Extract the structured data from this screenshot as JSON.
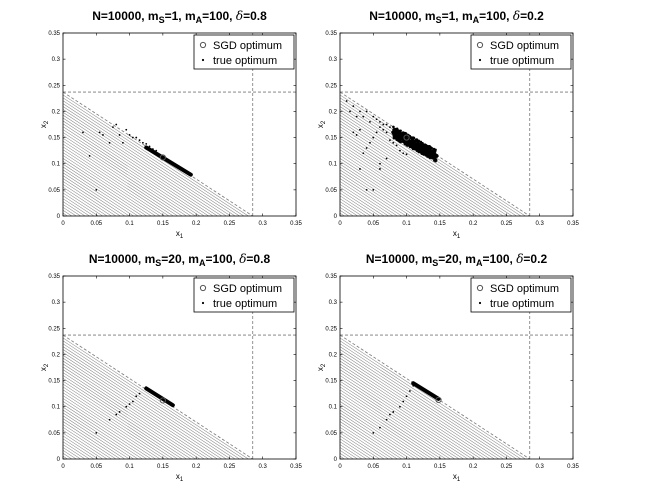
{
  "chart_data": [
    {
      "type": "scatter",
      "title_parts": {
        "n": "10000",
        "ms": "1",
        "ma": "100",
        "delta": "0.8"
      },
      "xlabel": "x",
      "xlabel_sub": "1",
      "ylabel": "x",
      "ylabel_sub": "2",
      "xlim": [
        0,
        0.35
      ],
      "ylim": [
        0,
        0.35
      ],
      "xticks": [
        "0",
        "0.05",
        "0.1",
        "0.15",
        "0.2",
        "0.25",
        "0.3",
        "0.35"
      ],
      "yticks": [
        "0",
        "0.05",
        "0.1",
        "0.15",
        "0.2",
        "0.25",
        "0.3",
        "0.35"
      ],
      "legend": {
        "position": "top-right",
        "entries": [
          "SGD optimum",
          "true optimum"
        ]
      },
      "constraint_line": {
        "x_intercept": 0.285,
        "y_intercept": 0.237
      },
      "dashed_levels": {
        "x": 0.285,
        "y": 0.237
      },
      "true_optimum": {
        "x": 0.15,
        "y": 0.112
      },
      "sgd_path": {
        "from": [
          0.125,
          0.131
        ],
        "to": [
          0.192,
          0.079
        ]
      },
      "sgd_scatter": [
        [
          0.03,
          0.16
        ],
        [
          0.04,
          0.115
        ],
        [
          0.05,
          0.05
        ],
        [
          0.055,
          0.16
        ],
        [
          0.06,
          0.155
        ],
        [
          0.07,
          0.14
        ],
        [
          0.075,
          0.17
        ],
        [
          0.08,
          0.175
        ],
        [
          0.085,
          0.155
        ],
        [
          0.09,
          0.14
        ],
        [
          0.095,
          0.165
        ],
        [
          0.1,
          0.155
        ],
        [
          0.105,
          0.15
        ],
        [
          0.11,
          0.15
        ],
        [
          0.115,
          0.145
        ],
        [
          0.12,
          0.14
        ],
        [
          0.125,
          0.138
        ],
        [
          0.13,
          0.133
        ],
        [
          0.135,
          0.128
        ],
        [
          0.14,
          0.125
        ]
      ]
    },
    {
      "type": "scatter",
      "title_parts": {
        "n": "10000",
        "ms": "1",
        "ma": "100",
        "delta": "0.2"
      },
      "xlabel": "x",
      "xlabel_sub": "1",
      "ylabel": "x",
      "ylabel_sub": "2",
      "xlim": [
        0,
        0.35
      ],
      "ylim": [
        0,
        0.35
      ],
      "xticks": [
        "0",
        "0.05",
        "0.1",
        "0.15",
        "0.2",
        "0.25",
        "0.3",
        "0.35"
      ],
      "yticks": [
        "0",
        "0.05",
        "0.1",
        "0.15",
        "0.2",
        "0.25",
        "0.3",
        "0.35"
      ],
      "legend": {
        "position": "top-right",
        "entries": [
          "SGD optimum",
          "true optimum"
        ]
      },
      "constraint_line": {
        "x_intercept": 0.285,
        "y_intercept": 0.237
      },
      "dashed_levels": {
        "x": 0.285,
        "y": 0.237
      },
      "true_optimum": {
        "x": 0.1,
        "y": 0.15
      },
      "sgd_path": {
        "from": [
          0.08,
          0.16
        ],
        "to": [
          0.145,
          0.115
        ]
      },
      "sgd_scatter": [
        [
          0.01,
          0.22
        ],
        [
          0.015,
          0.2
        ],
        [
          0.02,
          0.21
        ],
        [
          0.025,
          0.19
        ],
        [
          0.03,
          0.2
        ],
        [
          0.035,
          0.19
        ],
        [
          0.04,
          0.2
        ],
        [
          0.045,
          0.18
        ],
        [
          0.05,
          0.19
        ],
        [
          0.055,
          0.185
        ],
        [
          0.06,
          0.18
        ],
        [
          0.065,
          0.175
        ],
        [
          0.07,
          0.175
        ],
        [
          0.075,
          0.17
        ],
        [
          0.02,
          0.16
        ],
        [
          0.025,
          0.155
        ],
        [
          0.03,
          0.165
        ],
        [
          0.035,
          0.12
        ],
        [
          0.04,
          0.13
        ],
        [
          0.045,
          0.14
        ],
        [
          0.05,
          0.15
        ],
        [
          0.055,
          0.16
        ],
        [
          0.06,
          0.17
        ],
        [
          0.065,
          0.165
        ],
        [
          0.07,
          0.16
        ],
        [
          0.075,
          0.145
        ],
        [
          0.08,
          0.14
        ],
        [
          0.085,
          0.135
        ],
        [
          0.09,
          0.125
        ],
        [
          0.095,
          0.12
        ],
        [
          0.1,
          0.118
        ],
        [
          0.105,
          0.14
        ],
        [
          0.11,
          0.13
        ],
        [
          0.115,
          0.128
        ],
        [
          0.12,
          0.125
        ],
        [
          0.125,
          0.12
        ],
        [
          0.13,
          0.118
        ],
        [
          0.135,
          0.115
        ],
        [
          0.04,
          0.05
        ],
        [
          0.05,
          0.05
        ],
        [
          0.03,
          0.09
        ],
        [
          0.06,
          0.09
        ],
        [
          0.06,
          0.1
        ],
        [
          0.07,
          0.11
        ],
        [
          0.085,
          0.16
        ],
        [
          0.09,
          0.155
        ],
        [
          0.1,
          0.145
        ],
        [
          0.11,
          0.14
        ]
      ]
    },
    {
      "type": "scatter",
      "title_parts": {
        "n": "10000",
        "ms": "20",
        "ma": "100",
        "delta": "0.8"
      },
      "xlabel": "x",
      "xlabel_sub": "1",
      "ylabel": "x",
      "ylabel_sub": "2",
      "xlim": [
        0,
        0.35
      ],
      "ylim": [
        0,
        0.35
      ],
      "xticks": [
        "0",
        "0.05",
        "0.1",
        "0.15",
        "0.2",
        "0.25",
        "0.3",
        "0.35"
      ],
      "yticks": [
        "0",
        "0.05",
        "0.1",
        "0.15",
        "0.2",
        "0.25",
        "0.3",
        "0.35"
      ],
      "legend": {
        "position": "top-right",
        "entries": [
          "SGD optimum",
          "true optimum"
        ]
      },
      "constraint_line": {
        "x_intercept": 0.285,
        "y_intercept": 0.237
      },
      "dashed_levels": {
        "x": 0.285,
        "y": 0.237
      },
      "true_optimum": {
        "x": 0.15,
        "y": 0.112
      },
      "sgd_path": {
        "from": [
          0.125,
          0.135
        ],
        "to": [
          0.165,
          0.103
        ]
      },
      "sgd_scatter": [
        [
          0.05,
          0.05
        ],
        [
          0.07,
          0.075
        ],
        [
          0.08,
          0.085
        ],
        [
          0.085,
          0.09
        ],
        [
          0.095,
          0.1
        ],
        [
          0.1,
          0.105
        ],
        [
          0.105,
          0.11
        ],
        [
          0.11,
          0.12
        ],
        [
          0.115,
          0.125
        ]
      ]
    },
    {
      "type": "scatter",
      "title_parts": {
        "n": "10000",
        "ms": "20",
        "ma": "100",
        "delta": "0.2"
      },
      "xlabel": "x",
      "xlabel_sub": "1",
      "ylabel": "x",
      "ylabel_sub": "2",
      "xlim": [
        0,
        0.35
      ],
      "ylim": [
        0,
        0.35
      ],
      "xticks": [
        "0",
        "0.05",
        "0.1",
        "0.15",
        "0.2",
        "0.25",
        "0.3",
        "0.35"
      ],
      "yticks": [
        "0",
        "0.05",
        "0.1",
        "0.15",
        "0.2",
        "0.25",
        "0.3",
        "0.35"
      ],
      "legend": {
        "position": "top-right",
        "entries": [
          "SGD optimum",
          "true optimum"
        ]
      },
      "constraint_line": {
        "x_intercept": 0.285,
        "y_intercept": 0.237
      },
      "dashed_levels": {
        "x": 0.285,
        "y": 0.237
      },
      "true_optimum": {
        "x": 0.148,
        "y": 0.113
      },
      "sgd_path": {
        "from": [
          0.11,
          0.145
        ],
        "to": [
          0.148,
          0.115
        ]
      },
      "sgd_scatter": [
        [
          0.05,
          0.05
        ],
        [
          0.06,
          0.06
        ],
        [
          0.07,
          0.075
        ],
        [
          0.075,
          0.085
        ],
        [
          0.08,
          0.09
        ],
        [
          0.09,
          0.1
        ],
        [
          0.095,
          0.11
        ],
        [
          0.1,
          0.12
        ],
        [
          0.105,
          0.13
        ],
        [
          0.11,
          0.14
        ]
      ]
    }
  ]
}
